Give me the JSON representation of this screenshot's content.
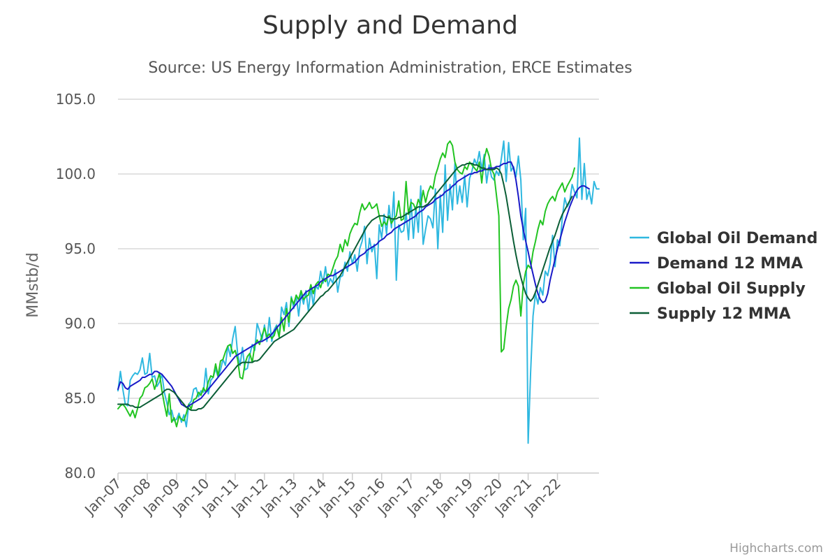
{
  "chart_data": {
    "type": "line",
    "title": "Supply and Demand",
    "subtitle": "Source: US Energy Information Administration, ERCE Estimates",
    "ylabel": "MMstb/d",
    "xlabel": "",
    "ylim": [
      80,
      105
    ],
    "yticks": [
      "80.0",
      "85.0",
      "90.0",
      "95.0",
      "100.0",
      "105.0"
    ],
    "xticks": [
      "Jan-07",
      "Jan-08",
      "Jan-09",
      "Jan-10",
      "Jan-11",
      "Jan-12",
      "Jan-13",
      "Jan-14",
      "Jan-15",
      "Jan-16",
      "Jan-17",
      "Jan-18",
      "Jan-19",
      "Jan-20",
      "Jan-21",
      "Jan-22"
    ],
    "x_start": "Jan-07",
    "x_end": "Jun-22",
    "legend_position": "right",
    "credits": "Highcharts.com",
    "series": [
      {
        "name": "Global Oil Demand",
        "color": "#2fb8e0",
        "values": [
          85.5,
          86.8,
          85.6,
          84.6,
          84.5,
          86.2,
          86.5,
          86.7,
          86.6,
          86.9,
          87.7,
          86.6,
          86.7,
          88.0,
          86.4,
          86.5,
          85.8,
          86.1,
          86.6,
          85.4,
          84.7,
          83.9,
          84.2,
          83.5,
          83.6,
          84.0,
          83.4,
          83.9,
          83.1,
          84.6,
          84.8,
          85.6,
          85.7,
          85.1,
          85.5,
          85.4,
          87.0,
          85.3,
          86.2,
          86.4,
          87.0,
          86.4,
          86.9,
          87.6,
          87.2,
          88.5,
          87.8,
          89.0,
          89.8,
          88.0,
          87.2,
          88.4,
          86.9,
          87.0,
          87.9,
          88.6,
          88.2,
          90.0,
          89.5,
          88.9,
          89.9,
          88.8,
          90.4,
          88.8,
          89.6,
          89.9,
          89.1,
          91.1,
          90.6,
          91.4,
          89.8,
          91.8,
          91.0,
          91.9,
          90.5,
          92.0,
          91.3,
          92.2,
          90.8,
          92.4,
          91.2,
          92.5,
          92.3,
          93.5,
          92.7,
          93.8,
          92.5,
          93.0,
          92.7,
          93.6,
          92.1,
          93.1,
          93.2,
          94.1,
          93.5,
          94.8,
          94.0,
          94.6,
          93.5,
          95.0,
          95.5,
          96.5,
          94.0,
          95.7,
          94.8,
          95.3,
          93.0,
          96.6,
          95.7,
          97.3,
          96.0,
          97.9,
          96.4,
          98.8,
          92.9,
          96.6,
          96.1,
          96.2,
          97.4,
          95.6,
          98.3,
          95.7,
          97.8,
          96.1,
          99.2,
          95.3,
          96.3,
          97.2,
          97.0,
          96.4,
          99.0,
          95.0,
          98.6,
          96.1,
          100.6,
          96.9,
          99.3,
          97.6,
          100.7,
          98.0,
          99.2,
          98.1,
          99.9,
          97.8,
          99.7,
          100.2,
          101.0,
          100.6,
          101.5,
          100.3,
          101.3,
          99.4,
          100.6,
          99.8,
          99.6,
          100.2,
          99.9,
          101.0,
          102.2,
          99.5,
          102.1,
          100.2,
          100.5,
          99.8,
          101.2,
          99.6,
          95.6,
          97.7,
          82.0,
          86.7,
          90.5,
          92.0,
          91.3,
          92.4,
          91.9,
          93.5,
          93.2,
          94.0,
          95.9,
          93.8,
          95.6,
          95.2,
          97.1,
          98.4,
          97.8,
          98.1,
          99.3,
          98.8,
          98.4,
          102.4,
          98.3,
          100.7,
          98.3,
          98.9,
          98.0,
          99.5,
          99.0,
          99.0
        ]
      },
      {
        "name": "Demand 12 MMA",
        "color": "#1a1ac8",
        "values": [
          85.6,
          86.1,
          86.0,
          85.7,
          85.6,
          85.8,
          85.9,
          86.0,
          86.1,
          86.2,
          86.4,
          86.4,
          86.5,
          86.6,
          86.6,
          86.8,
          86.8,
          86.7,
          86.6,
          86.4,
          86.2,
          86.0,
          85.8,
          85.5,
          85.2,
          84.9,
          84.6,
          84.5,
          84.4,
          84.5,
          84.6,
          84.7,
          84.8,
          84.9,
          85.0,
          85.2,
          85.4,
          85.6,
          85.8,
          86.0,
          86.2,
          86.4,
          86.6,
          86.8,
          87.0,
          87.2,
          87.4,
          87.6,
          87.8,
          87.9,
          88.0,
          88.1,
          88.2,
          88.3,
          88.4,
          88.5,
          88.6,
          88.7,
          88.8,
          88.8,
          88.9,
          89.0,
          89.1,
          89.3,
          89.5,
          89.7,
          89.9,
          90.1,
          90.3,
          90.5,
          90.7,
          90.9,
          91.1,
          91.3,
          91.5,
          91.7,
          91.9,
          92.1,
          92.2,
          92.3,
          92.4,
          92.5,
          92.6,
          92.8,
          92.9,
          93.0,
          93.1,
          93.2,
          93.2,
          93.3,
          93.4,
          93.5,
          93.6,
          93.7,
          93.8,
          93.9,
          94.0,
          94.1,
          94.3,
          94.5,
          94.6,
          94.7,
          94.9,
          95.0,
          95.1,
          95.2,
          95.3,
          95.5,
          95.6,
          95.7,
          95.9,
          96.0,
          96.1,
          96.3,
          96.4,
          96.5,
          96.6,
          96.7,
          96.8,
          96.9,
          97.0,
          97.1,
          97.2,
          97.4,
          97.5,
          97.6,
          97.8,
          97.9,
          98.0,
          98.1,
          98.3,
          98.4,
          98.5,
          98.6,
          98.8,
          98.9,
          99.0,
          99.2,
          99.3,
          99.5,
          99.6,
          99.7,
          99.8,
          99.9,
          100.0,
          100.0,
          100.1,
          100.1,
          100.2,
          100.2,
          100.3,
          100.3,
          100.4,
          100.4,
          100.4,
          100.5,
          100.5,
          100.6,
          100.7,
          100.7,
          100.8,
          100.8,
          100.4,
          99.6,
          98.5,
          97.2,
          96.3,
          95.5,
          94.8,
          94.0,
          93.3,
          92.6,
          92.0,
          91.6,
          91.4,
          91.5,
          92.0,
          92.9,
          93.6,
          94.3,
          95.0,
          95.6,
          96.2,
          96.8,
          97.3,
          97.8,
          98.2,
          98.6,
          98.9,
          99.1,
          99.2,
          99.2,
          99.1,
          99.0
        ]
      },
      {
        "name": "Global Oil Supply",
        "color": "#22c422",
        "values": [
          84.3,
          84.5,
          84.6,
          84.4,
          84.1,
          83.8,
          84.2,
          83.7,
          84.3,
          85.0,
          85.2,
          85.7,
          85.8,
          86.0,
          86.3,
          85.6,
          86.1,
          86.7,
          85.5,
          84.6,
          83.8,
          85.3,
          83.4,
          83.7,
          83.1,
          83.8,
          83.6,
          83.5,
          84.0,
          84.6,
          84.3,
          84.9,
          85.0,
          85.4,
          85.2,
          85.7,
          85.4,
          86.1,
          86.5,
          86.4,
          87.3,
          86.5,
          87.5,
          87.6,
          88.1,
          88.5,
          88.6,
          88.0,
          88.2,
          87.6,
          86.4,
          86.3,
          87.3,
          87.8,
          88.0,
          87.4,
          88.5,
          88.9,
          88.6,
          89.2,
          89.7,
          89.1,
          89.3,
          89.0,
          89.2,
          89.8,
          89.1,
          90.4,
          89.5,
          91.0,
          90.1,
          91.7,
          91.3,
          91.9,
          91.6,
          92.2,
          91.6,
          91.8,
          91.9,
          92.6,
          92.0,
          92.6,
          92.8,
          92.4,
          93.0,
          92.8,
          93.3,
          93.2,
          93.7,
          94.2,
          94.5,
          95.3,
          94.8,
          95.6,
          95.2,
          96.0,
          96.4,
          96.7,
          96.6,
          97.4,
          98.0,
          97.6,
          97.8,
          98.1,
          97.7,
          97.8,
          98.0,
          97.2,
          96.5,
          96.8,
          96.6,
          97.2,
          96.7,
          97.0,
          97.2,
          98.2,
          96.9,
          97.0,
          99.5,
          97.3,
          98.1,
          98.0,
          97.6,
          98.3,
          97.9,
          98.9,
          98.1,
          98.8,
          99.2,
          99.0,
          99.9,
          100.4,
          101.0,
          101.4,
          101.1,
          102.0,
          102.2,
          101.9,
          100.8,
          100.3,
          100.1,
          100.0,
          100.5,
          100.3,
          100.8,
          100.6,
          100.4,
          100.2,
          100.8,
          99.4,
          101.0,
          101.7,
          101.2,
          100.3,
          100.0,
          98.6,
          97.2,
          88.1,
          88.3,
          89.8,
          91.0,
          91.6,
          92.5,
          92.9,
          92.5,
          90.5,
          92.6,
          93.5,
          93.9,
          93.7,
          94.8,
          95.5,
          96.3,
          96.9,
          96.6,
          97.5,
          98.0,
          98.3,
          98.5,
          98.2,
          98.8,
          99.1,
          99.4,
          98.8,
          99.2,
          99.5,
          99.8,
          100.4
        ]
      },
      {
        "name": "Supply 12 MMA",
        "color": "#0b5e36",
        "values": [
          84.6,
          84.6,
          84.6,
          84.6,
          84.6,
          84.5,
          84.5,
          84.4,
          84.4,
          84.4,
          84.5,
          84.6,
          84.7,
          84.8,
          84.9,
          85.0,
          85.1,
          85.2,
          85.3,
          85.5,
          85.6,
          85.6,
          85.5,
          85.4,
          85.2,
          85.0,
          84.8,
          84.6,
          84.4,
          84.3,
          84.2,
          84.2,
          84.2,
          84.3,
          84.3,
          84.4,
          84.6,
          84.8,
          85.0,
          85.2,
          85.4,
          85.6,
          85.8,
          86.0,
          86.2,
          86.4,
          86.6,
          86.8,
          87.0,
          87.2,
          87.3,
          87.4,
          87.4,
          87.4,
          87.4,
          87.4,
          87.5,
          87.5,
          87.6,
          87.8,
          88.0,
          88.2,
          88.4,
          88.6,
          88.8,
          88.9,
          89.0,
          89.1,
          89.2,
          89.3,
          89.4,
          89.5,
          89.6,
          89.8,
          90.0,
          90.2,
          90.4,
          90.6,
          90.8,
          91.0,
          91.2,
          91.4,
          91.6,
          91.8,
          91.9,
          92.1,
          92.2,
          92.4,
          92.6,
          92.8,
          93.0,
          93.2,
          93.5,
          93.8,
          94.1,
          94.4,
          94.7,
          95.0,
          95.3,
          95.6,
          95.9,
          96.2,
          96.5,
          96.7,
          96.9,
          97.0,
          97.1,
          97.2,
          97.2,
          97.2,
          97.1,
          97.1,
          97.0,
          97.0,
          97.0,
          97.1,
          97.1,
          97.2,
          97.3,
          97.4,
          97.5,
          97.6,
          97.7,
          97.8,
          97.8,
          97.8,
          97.9,
          98.0,
          98.2,
          98.4,
          98.6,
          98.8,
          99.0,
          99.2,
          99.4,
          99.6,
          99.8,
          100.0,
          100.2,
          100.4,
          100.5,
          100.6,
          100.6,
          100.7,
          100.7,
          100.7,
          100.6,
          100.6,
          100.5,
          100.4,
          100.4,
          100.3,
          100.3,
          100.3,
          100.3,
          100.4,
          100.3,
          100.0,
          99.3,
          98.5,
          97.5,
          96.5,
          95.5,
          94.6,
          93.8,
          93.1,
          92.5,
          92.0,
          91.7,
          91.5,
          91.7,
          92.1,
          92.6,
          93.1,
          93.6,
          94.1,
          94.6,
          95.1,
          95.5,
          95.9,
          96.4,
          96.9,
          97.3,
          97.6,
          97.9,
          98.2,
          98.5
        ]
      }
    ]
  }
}
